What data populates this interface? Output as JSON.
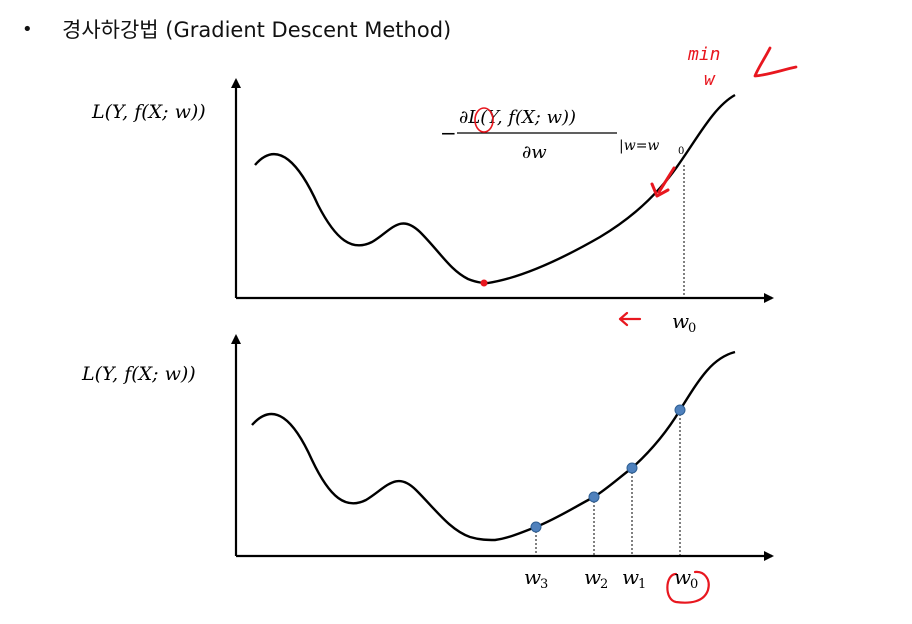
{
  "title": {
    "bullet": "•",
    "text": "경사하강법 (Gradient Descent Method)"
  },
  "top_plot": {
    "y_label": "L(Y, f(X; w))",
    "gradient_expr": {
      "minus": "−",
      "numerator": "∂L(Y, f(X; w))",
      "denominator": "∂w",
      "evaluated_at": "|w=w",
      "evaluated_sub": "0"
    },
    "x_marker_label": "w",
    "x_marker_sub": "0"
  },
  "bottom_plot": {
    "y_label": "L(Y, f(X; w))",
    "x_markers": [
      {
        "base": "w",
        "sub": "3"
      },
      {
        "base": "w",
        "sub": "2"
      },
      {
        "base": "w",
        "sub": "1"
      },
      {
        "base": "w",
        "sub": "0"
      }
    ]
  },
  "handwriting": {
    "min_text": "min",
    "w_text": "w",
    "L_text": "L",
    "arrow": "←"
  },
  "colors": {
    "curve": "#000000",
    "ink_red": "#e8171f",
    "minimum_dot": "#e8171f",
    "step_dot": "#4f81bd",
    "step_dot_edge": "#2e5f94"
  }
}
